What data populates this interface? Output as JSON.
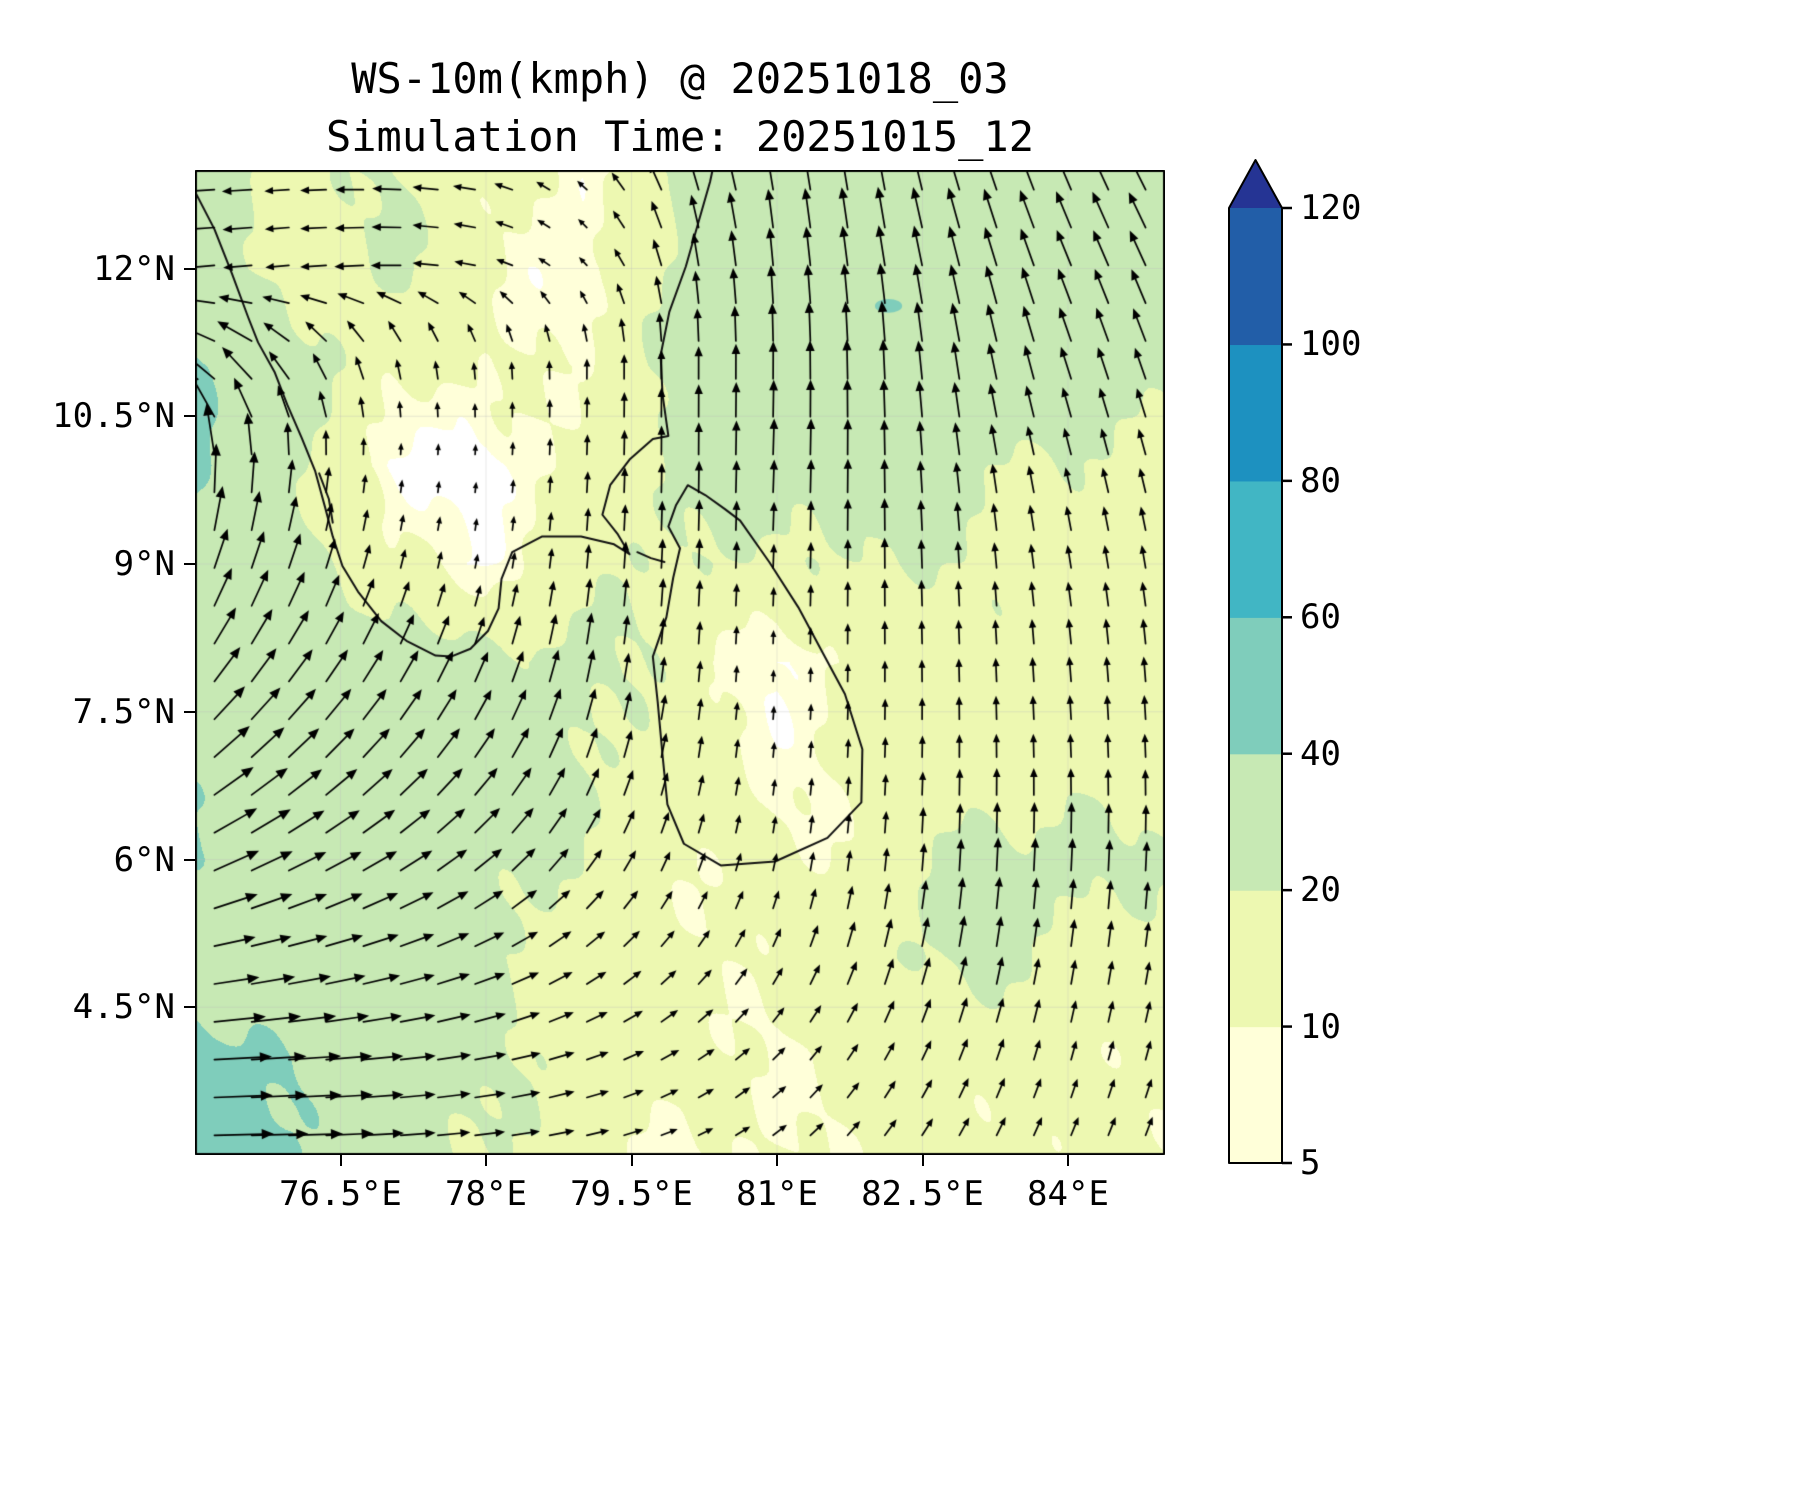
{
  "figure": {
    "title": "WS-10m(kmph) @ 20251018_03",
    "subtitle": "Simulation Time: 20251015_12",
    "background": "#ffffff"
  },
  "chart_data": {
    "type": "heatmap",
    "subtype": "filled-contour wind speed map with quiver arrows and coastlines",
    "variable": "WS-10m",
    "units": "kmph",
    "forecast_time": "20251018_03",
    "simulation_time": "20251015_12",
    "xlim": [
      75,
      85
    ],
    "ylim": [
      3,
      13
    ],
    "x_ticks": [
      76.5,
      78,
      79.5,
      81,
      82.5,
      84
    ],
    "x_tick_labels": [
      "76.5°E",
      "78°E",
      "79.5°E",
      "81°E",
      "82.5°E",
      "84°E"
    ],
    "y_ticks": [
      4.5,
      6,
      7.5,
      9,
      10.5,
      12
    ],
    "y_tick_labels": [
      "4.5°N",
      "6°N",
      "7.5°N",
      "9°N",
      "10.5°N",
      "12°N"
    ],
    "grid_on": true,
    "grid_color": "rgba(190,190,190,0.35)",
    "coast_color": "#111111",
    "arrow_color": "#000000",
    "colorbar": {
      "orientation": "vertical",
      "extend": "max",
      "levels": [
        5,
        10,
        20,
        40,
        60,
        80,
        100,
        120
      ],
      "tick_labels": [
        "5",
        "10",
        "20",
        "40",
        "60",
        "80",
        "100",
        "120"
      ],
      "band_colors": [
        "#ffffd9",
        "#edf8b1",
        "#c7e9b4",
        "#7fcdbb",
        "#41b6c4",
        "#1d91c0",
        "#225ea8"
      ],
      "under_color": "#ffffff",
      "extend_color": "#253494"
    },
    "grid": {
      "lons": [
        75,
        76,
        77,
        78,
        79,
        80,
        81,
        82,
        83,
        84,
        85
      ],
      "lats": [
        13,
        12,
        11,
        10,
        9,
        8,
        7,
        6,
        5,
        4,
        3
      ],
      "speed_kmph": [
        [
          28,
          16,
          20,
          14,
          6,
          24,
          30,
          32,
          32,
          30,
          30
        ],
        [
          26,
          15,
          22,
          12,
          4,
          22,
          28,
          30,
          30,
          28,
          28
        ],
        [
          45,
          24,
          14,
          10,
          12,
          22,
          28,
          30,
          28,
          25,
          24
        ],
        [
          44,
          22,
          4,
          3,
          12,
          22,
          26,
          25,
          22,
          18,
          17
        ],
        [
          32,
          26,
          12,
          6,
          15,
          22,
          16,
          22,
          18,
          15,
          15
        ],
        [
          32,
          29,
          26,
          22,
          24,
          15,
          4,
          13,
          15,
          17,
          17
        ],
        [
          37,
          31,
          28,
          25,
          22,
          15,
          8,
          12,
          15,
          15,
          15
        ],
        [
          40,
          31,
          28,
          25,
          18,
          12,
          10,
          13,
          24,
          24,
          20
        ],
        [
          31,
          29,
          26,
          22,
          15,
          12,
          12,
          20,
          22,
          18,
          15
        ],
        [
          46,
          40,
          26,
          22,
          15,
          12,
          10,
          12,
          15,
          12,
          12
        ],
        [
          48,
          42,
          26,
          20,
          15,
          8,
          10,
          12,
          12,
          12,
          12
        ]
      ],
      "direction_deg_ccw_from_east": [
        [
          183,
          183,
          178,
          170,
          140,
          110,
          100,
          100,
          108,
          113,
          118
        ],
        [
          185,
          185,
          182,
          168,
          135,
          100,
          95,
          98,
          105,
          112,
          115
        ],
        [
          150,
          130,
          105,
          95,
          90,
          90,
          90,
          92,
          100,
          108,
          110
        ],
        [
          95,
          88,
          85,
          86,
          88,
          90,
          88,
          90,
          98,
          104,
          105
        ],
        [
          72,
          72,
          76,
          80,
          85,
          88,
          88,
          90,
          94,
          99,
          100
        ],
        [
          56,
          56,
          62,
          70,
          80,
          85,
          88,
          90,
          92,
          95,
          95
        ],
        [
          40,
          43,
          48,
          56,
          70,
          80,
          85,
          88,
          90,
          92,
          92
        ],
        [
          25,
          28,
          33,
          42,
          56,
          70,
          80,
          85,
          88,
          88,
          88
        ],
        [
          10,
          13,
          17,
          24,
          36,
          50,
          65,
          75,
          80,
          82,
          82
        ],
        [
          3,
          4,
          6,
          11,
          19,
          31,
          46,
          60,
          70,
          75,
          75
        ],
        [
          1,
          1,
          3,
          6,
          11,
          21,
          36,
          51,
          60,
          66,
          68
        ]
      ]
    },
    "specks": [
      {
        "lon": 82.15,
        "lat": 11.62,
        "rx": 0.14,
        "ry": 0.07,
        "value": 45
      }
    ],
    "coastlines": [
      {
        "name": "india-coast",
        "closed": false,
        "points": [
          [
            75.0,
            12.78
          ],
          [
            75.2,
            12.4
          ],
          [
            75.38,
            11.95
          ],
          [
            75.55,
            11.5
          ],
          [
            75.65,
            11.25
          ],
          [
            75.82,
            10.95
          ],
          [
            75.95,
            10.62
          ],
          [
            76.1,
            10.28
          ],
          [
            76.24,
            9.94
          ],
          [
            76.34,
            9.58
          ],
          [
            76.42,
            9.28
          ],
          [
            76.52,
            8.98
          ],
          [
            76.68,
            8.72
          ],
          [
            76.92,
            8.42
          ],
          [
            77.18,
            8.22
          ],
          [
            77.48,
            8.07
          ],
          [
            77.64,
            8.06
          ],
          [
            77.84,
            8.14
          ],
          [
            78.02,
            8.32
          ],
          [
            78.13,
            8.55
          ],
          [
            78.16,
            8.85
          ],
          [
            78.27,
            9.12
          ],
          [
            78.58,
            9.28
          ],
          [
            78.98,
            9.28
          ],
          [
            79.32,
            9.2
          ],
          [
            79.48,
            9.1
          ],
          [
            79.36,
            9.3
          ],
          [
            79.2,
            9.5
          ],
          [
            79.28,
            9.8
          ],
          [
            79.48,
            10.06
          ],
          [
            79.72,
            10.27
          ],
          [
            79.88,
            10.3
          ],
          [
            79.82,
            10.72
          ],
          [
            79.8,
            11.12
          ],
          [
            79.89,
            11.56
          ],
          [
            80.06,
            12.02
          ],
          [
            80.19,
            12.47
          ],
          [
            80.31,
            12.88
          ],
          [
            80.34,
            13.02
          ]
        ]
      },
      {
        "name": "sri-lanka-coast",
        "closed": true,
        "points": [
          [
            80.08,
            9.8
          ],
          [
            80.26,
            9.7
          ],
          [
            80.46,
            9.56
          ],
          [
            80.62,
            9.44
          ],
          [
            80.92,
            9.02
          ],
          [
            81.22,
            8.56
          ],
          [
            81.46,
            8.12
          ],
          [
            81.7,
            7.68
          ],
          [
            81.88,
            7.12
          ],
          [
            81.87,
            6.58
          ],
          [
            81.52,
            6.22
          ],
          [
            80.98,
            5.98
          ],
          [
            80.42,
            5.94
          ],
          [
            80.04,
            6.16
          ],
          [
            79.87,
            6.56
          ],
          [
            79.82,
            7.06
          ],
          [
            79.77,
            7.6
          ],
          [
            79.72,
            8.06
          ],
          [
            79.86,
            8.46
          ],
          [
            79.93,
            8.86
          ],
          [
            80.0,
            9.16
          ],
          [
            79.88,
            9.38
          ],
          [
            79.96,
            9.6
          ]
        ]
      },
      {
        "name": "adams-bridge-islets",
        "closed": false,
        "points": [
          [
            79.56,
            9.12
          ],
          [
            79.7,
            9.06
          ],
          [
            79.84,
            9.02
          ]
        ]
      },
      {
        "name": "kerala-backwaters",
        "closed": false,
        "points": [
          [
            76.28,
            9.92
          ],
          [
            76.38,
            9.66
          ],
          [
            76.42,
            9.42
          ]
        ]
      }
    ]
  }
}
